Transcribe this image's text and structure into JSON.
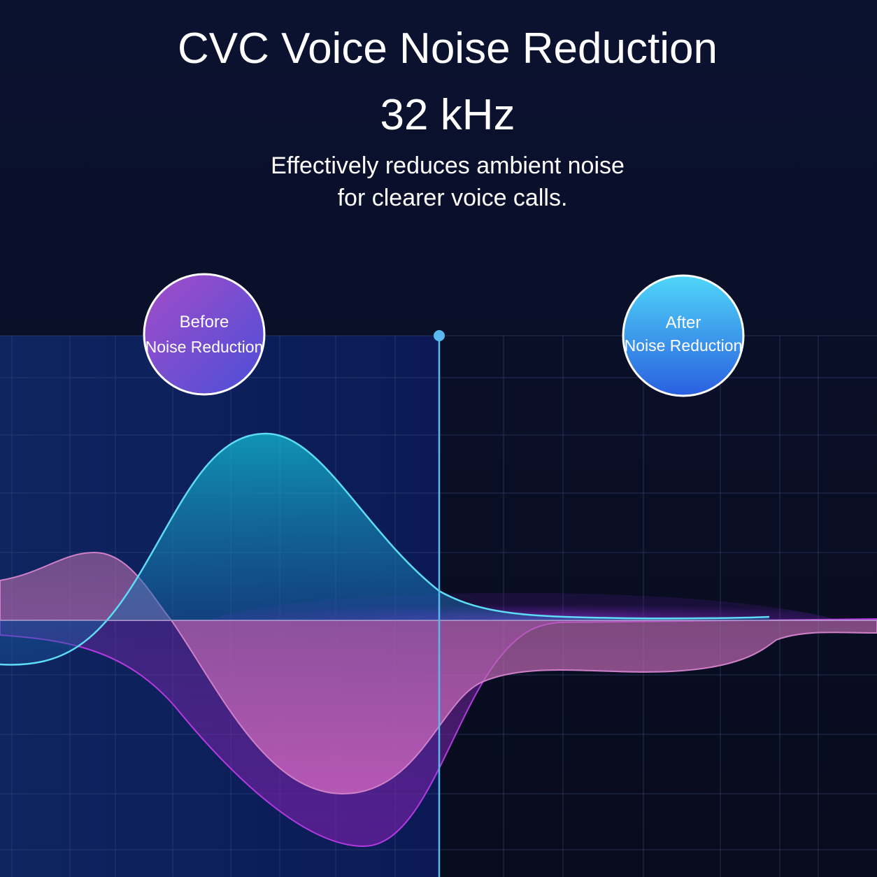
{
  "header": {
    "title": "CVC Voice Noise Reduction",
    "subtitle": "32 kHz",
    "description": [
      "Effectively reduces ambient noise",
      "for clearer voice calls."
    ]
  },
  "badges": [
    {
      "line1": "Before",
      "line2": "Noise Reduction"
    },
    {
      "line1": "After",
      "line2": "Noise Reduction"
    }
  ]
}
